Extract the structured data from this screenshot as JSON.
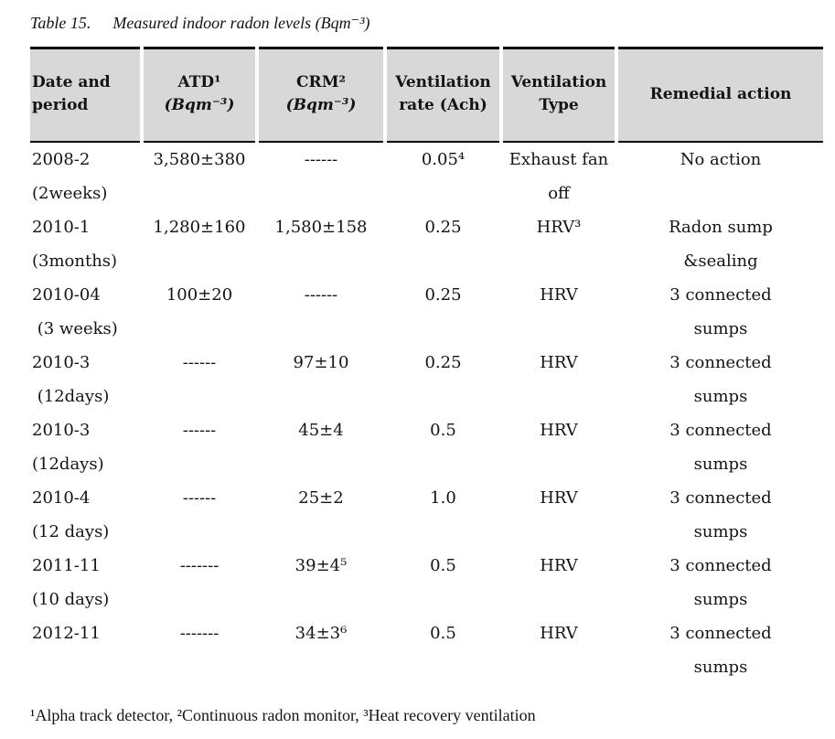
{
  "page": {
    "background": "#ffffff",
    "text_color": "#141414",
    "header_bg": "#d8d8d8",
    "rule_color": "#000000"
  },
  "title": {
    "label": "Table 15.",
    "text": "Measured indoor radon levels (Bqm⁻³)"
  },
  "table": {
    "headers": [
      {
        "id": "date-period",
        "lines": [
          "Date and",
          "period"
        ],
        "align": "left",
        "italic_line2": false
      },
      {
        "id": "atd",
        "lines": [
          "ATD¹",
          "(Bqm⁻³)"
        ],
        "align": "center",
        "italic_line2": true
      },
      {
        "id": "crm",
        "lines": [
          "CRM²",
          "(Bqm⁻³)"
        ],
        "align": "center",
        "italic_line2": true
      },
      {
        "id": "ventilation-rate",
        "lines": [
          "Ventilation",
          "rate (Ach)"
        ],
        "align": "center",
        "italic_line2": false
      },
      {
        "id": "ventilation-type",
        "lines": [
          "Ventilation",
          "Type"
        ],
        "align": "center",
        "italic_line2": false
      },
      {
        "id": "remedial-action",
        "lines": [
          "Remedial action"
        ],
        "align": "center",
        "italic_line2": false
      }
    ],
    "rows": [
      [
        "2008-2\n(2weeks)",
        "3,580±380",
        "------",
        "0.05⁴",
        "Exhaust fan\noff",
        "No action"
      ],
      [
        "2010-1\n(3months)",
        "1,280±160",
        "1,580±158",
        "0.25",
        "HRV³",
        "Radon sump\n&sealing"
      ],
      [
        "2010-04\n (3 weeks)",
        "100±20",
        "------",
        "0.25",
        "HRV",
        "3 connected\nsumps"
      ],
      [
        "2010-3\n (12days)",
        "------",
        "97±10",
        "0.25",
        "HRV",
        "3 connected\nsumps"
      ],
      [
        "2010-3\n(12days)",
        "------",
        "45±4",
        "0.5",
        "HRV",
        "3 connected\nsumps"
      ],
      [
        "2010-4\n(12 days)",
        "------",
        "25±2",
        "1.0",
        "HRV",
        "3 connected\nsumps"
      ],
      [
        "2011-11\n(10 days)",
        "-------",
        "39±4⁵",
        "0.5",
        "HRV",
        "3 connected\nsumps"
      ],
      [
        "2012-11",
        "-------",
        "34±3⁶",
        "0.5",
        "HRV",
        "3 connected\nsumps"
      ]
    ]
  },
  "footnote": "¹Alpha track detector, ²Continuous radon monitor, ³Heat recovery ventilation"
}
